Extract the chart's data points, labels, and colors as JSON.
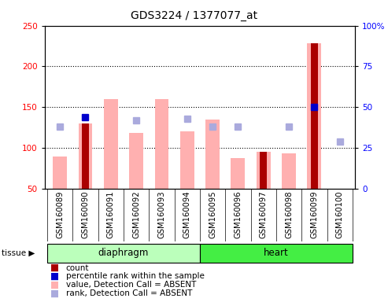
{
  "title": "GDS3224 / 1377077_at",
  "samples": [
    "GSM160089",
    "GSM160090",
    "GSM160091",
    "GSM160092",
    "GSM160093",
    "GSM160094",
    "GSM160095",
    "GSM160096",
    "GSM160097",
    "GSM160098",
    "GSM160099",
    "GSM160100"
  ],
  "pink_bars": [
    90,
    130,
    160,
    118,
    160,
    120,
    135,
    88,
    95,
    93,
    228,
    50
  ],
  "red_bars": [
    0,
    130,
    0,
    0,
    0,
    0,
    0,
    0,
    95,
    0,
    228,
    3
  ],
  "blue_percentile": [
    null,
    44,
    null,
    null,
    null,
    null,
    null,
    null,
    null,
    null,
    50,
    null
  ],
  "light_blue_rank": [
    38,
    null,
    null,
    42,
    null,
    43,
    38,
    38,
    null,
    38,
    null,
    29
  ],
  "ylim_left": [
    50,
    250
  ],
  "ylim_right": [
    0,
    100
  ],
  "yticks_left": [
    50,
    100,
    150,
    200,
    250
  ],
  "yticks_right": [
    0,
    25,
    50,
    75,
    100
  ],
  "pink_color": "#FFB0B0",
  "red_color": "#AA0000",
  "blue_color": "#0000CC",
  "light_blue_color": "#AAAADD",
  "diaphragm_color": "#BBFFBB",
  "heart_color": "#44EE44",
  "sample_bg_color": "#CCCCCC",
  "grid_color": "#000000",
  "bar_width": 0.55,
  "red_bar_width": 0.28
}
